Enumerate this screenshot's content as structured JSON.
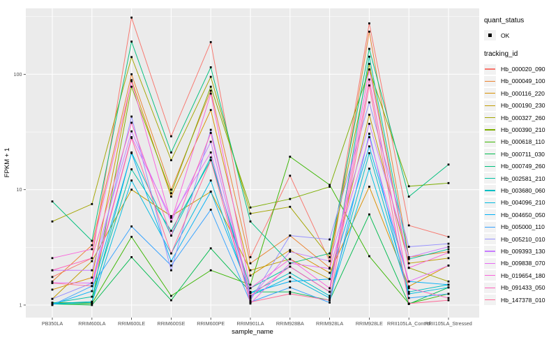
{
  "legend": {
    "quant_status_title": "quant_status",
    "quant_status_items": [
      "OK"
    ],
    "tracking_id_title": "tracking_id"
  },
  "chart_data": {
    "type": "line",
    "x_type": "categorical",
    "y_scale": "log10",
    "xlabel": "sample_name",
    "ylabel": "FPKM + 1",
    "title": "",
    "y_ticks": [
      1,
      10,
      100
    ],
    "y_tick_labels": [
      "1",
      "10",
      "100"
    ],
    "y_minor_breaks": [
      3.162,
      31.62,
      316.2
    ],
    "ylim": [
      0.78,
      375
    ],
    "grid": true,
    "legend_position": "right",
    "point_shape": "filled-square",
    "point_color": "#000000",
    "panel_background": "#EBEBEB",
    "gridline_color": "#FFFFFF",
    "categories": [
      "PB350LA",
      "RRIM600LA",
      "RRIM600LE",
      "RRIM600SE",
      "RRIM600PE",
      "RRIM901LA",
      "RRIM928BA",
      "RRIM928LA",
      "RRIM928LE",
      "RRII105LA_Control",
      "RRII105LA_Stressed"
    ],
    "series": [
      {
        "name": "Hb_000020_090",
        "color": "#F8766D",
        "quant_status": "OK",
        "values": [
          1.75,
          2.55,
          310,
          29,
          190,
          2.6,
          13.2,
          2.4,
          276,
          4.9,
          3.9
        ]
      },
      {
        "name": "Hb_000049_100",
        "color": "#EA8331",
        "quant_status": "OK",
        "values": [
          1.6,
          3.3,
          100,
          10,
          72,
          2.3,
          4,
          2.1,
          234,
          2.6,
          2.9
        ]
      },
      {
        "name": "Hb_000116_220",
        "color": "#D89000",
        "quant_status": "OK",
        "values": [
          1.36,
          1.73,
          89,
          8.7,
          49,
          1.8,
          3,
          1.9,
          10.6,
          1.45,
          2.2
        ]
      },
      {
        "name": "Hb_000190_230",
        "color": "#C09B00",
        "quant_status": "OK",
        "values": [
          1.13,
          2.4,
          10,
          5.9,
          9.6,
          2,
          2.5,
          1.68,
          44.6,
          2.3,
          2.55
        ]
      },
      {
        "name": "Hb_000327_260",
        "color": "#A3A500",
        "quant_status": "OK",
        "values": [
          5.3,
          7.5,
          141,
          18,
          95,
          6.2,
          7.1,
          2.6,
          123,
          2.1,
          1.6
        ]
      },
      {
        "name": "Hb_000390_210",
        "color": "#7CAE00",
        "quant_status": "OK",
        "values": [
          1.05,
          1.05,
          78,
          9.3,
          78,
          7,
          8.3,
          10.6,
          110,
          10.7,
          11.4
        ]
      },
      {
        "name": "Hb_000618_110",
        "color": "#39B600",
        "quant_status": "OK",
        "values": [
          1.03,
          1.03,
          3.9,
          1.2,
          2,
          1.5,
          19.3,
          11,
          2.65,
          1.03,
          1.25
        ]
      },
      {
        "name": "Hb_000711_030",
        "color": "#00BB4E",
        "quant_status": "OK",
        "values": [
          1.02,
          1,
          2.6,
          1.1,
          3.1,
          1.3,
          1.3,
          1.1,
          6.1,
          1.02,
          1.42
        ]
      },
      {
        "name": "Hb_000749_260",
        "color": "#00BF7D",
        "quant_status": "OK",
        "values": [
          7.9,
          3.6,
          192,
          21,
          115,
          5.3,
          2.3,
          2.8,
          166,
          8.7,
          16.5
        ]
      },
      {
        "name": "Hb_002581_210",
        "color": "#00C1A3",
        "quant_status": "OK",
        "values": [
          1.04,
          1.18,
          15,
          4.4,
          18,
          1.4,
          2.15,
          1.3,
          142,
          2.5,
          3.05
        ]
      },
      {
        "name": "Hb_003680_060",
        "color": "#00BFC4",
        "quant_status": "OK",
        "values": [
          1.03,
          1.07,
          21,
          4,
          19,
          1.27,
          1.9,
          1.2,
          20.7,
          1.3,
          1.5
        ]
      },
      {
        "name": "Hb_004096_210",
        "color": "#00BAE0",
        "quant_status": "OK",
        "values": [
          1.02,
          1.05,
          12,
          2.8,
          12,
          1.2,
          1.75,
          1.15,
          15.2,
          1.25,
          1.42
        ]
      },
      {
        "name": "Hb_004650_050",
        "color": "#00B0F6",
        "quant_status": "OK",
        "values": [
          1.01,
          1.32,
          20.7,
          2.4,
          9.6,
          1.27,
          1.6,
          1.68,
          23.7,
          1.6,
          1.5
        ]
      },
      {
        "name": "Hb_005000_110",
        "color": "#35A2FF",
        "quant_status": "OK",
        "values": [
          1,
          1.46,
          4.8,
          2.2,
          6.7,
          1.06,
          1.42,
          1.05,
          30.5,
          1.15,
          1.25
        ]
      },
      {
        "name": "Hb_005210_010",
        "color": "#9590FF",
        "quant_status": "OK",
        "values": [
          1.13,
          1.55,
          43,
          2,
          33,
          1.1,
          4,
          3.7,
          57,
          3.2,
          3.4
        ]
      },
      {
        "name": "Hb_009393_130",
        "color": "#C77CFF",
        "quant_status": "OK",
        "values": [
          2,
          2,
          32,
          5.3,
          26,
          1.15,
          2.9,
          2.4,
          37.2,
          2.6,
          3.2
        ]
      },
      {
        "name": "Hb_009838_070",
        "color": "#E76BF3",
        "quant_status": "OK",
        "values": [
          1.56,
          1.55,
          28.5,
          5.7,
          21,
          1.03,
          2.3,
          2.07,
          28.5,
          1.6,
          2.2
        ]
      },
      {
        "name": "Hb_019654_180",
        "color": "#FA62DB",
        "quant_status": "OK",
        "values": [
          2.55,
          3.05,
          87,
          5.3,
          68,
          1.4,
          2.5,
          1.4,
          110,
          2.1,
          2.85
        ]
      },
      {
        "name": "Hb_091433_050",
        "color": "#FF62BC",
        "quant_status": "OK",
        "values": [
          2,
          2.55,
          38,
          4,
          31,
          1.2,
          2.15,
          1.3,
          90,
          1.4,
          1.15
        ]
      },
      {
        "name": "Hb_147378_010",
        "color": "#FF6A98",
        "quant_status": "OK",
        "values": [
          1.55,
          1.46,
          28,
          2.8,
          18,
          1.06,
          1.25,
          1.1,
          80,
          1.03,
          1.1
        ]
      }
    ]
  }
}
